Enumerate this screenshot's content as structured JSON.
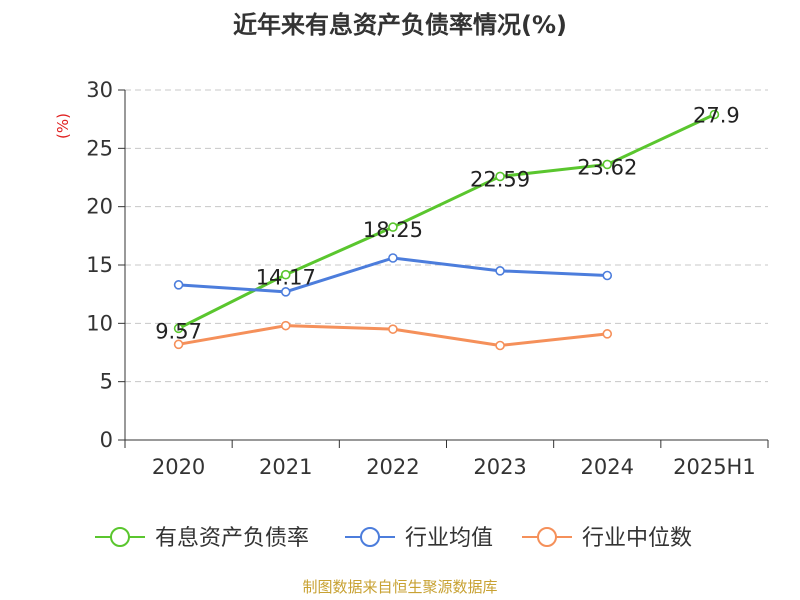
{
  "chart_data": {
    "type": "line",
    "title": "近年来有息资产负债率情况(%)",
    "ylabel": "(%)",
    "xlabel": "",
    "categories": [
      "2020",
      "2021",
      "2022",
      "2023",
      "2024",
      "2025H1"
    ],
    "ylim": [
      0,
      30
    ],
    "yticks": [
      0,
      5,
      10,
      15,
      20,
      25,
      30
    ],
    "grid": true,
    "legend_position": "bottom",
    "series": [
      {
        "name": "有息资产负债率",
        "color": "#5ac62e",
        "values": [
          9.57,
          14.17,
          18.25,
          22.59,
          23.62,
          27.9
        ],
        "labels": [
          "9.57",
          "14.17",
          "18.25",
          "22.59",
          "23.62",
          "27.9"
        ]
      },
      {
        "name": "行业均值",
        "color": "#4c7ddc",
        "values": [
          13.3,
          12.7,
          15.6,
          14.5,
          14.1,
          null
        ]
      },
      {
        "name": "行业中位数",
        "color": "#f5905a",
        "values": [
          8.2,
          9.8,
          9.5,
          8.1,
          9.1,
          null
        ]
      }
    ]
  },
  "footer": {
    "source": "制图数据来自恒生聚源数据库"
  }
}
